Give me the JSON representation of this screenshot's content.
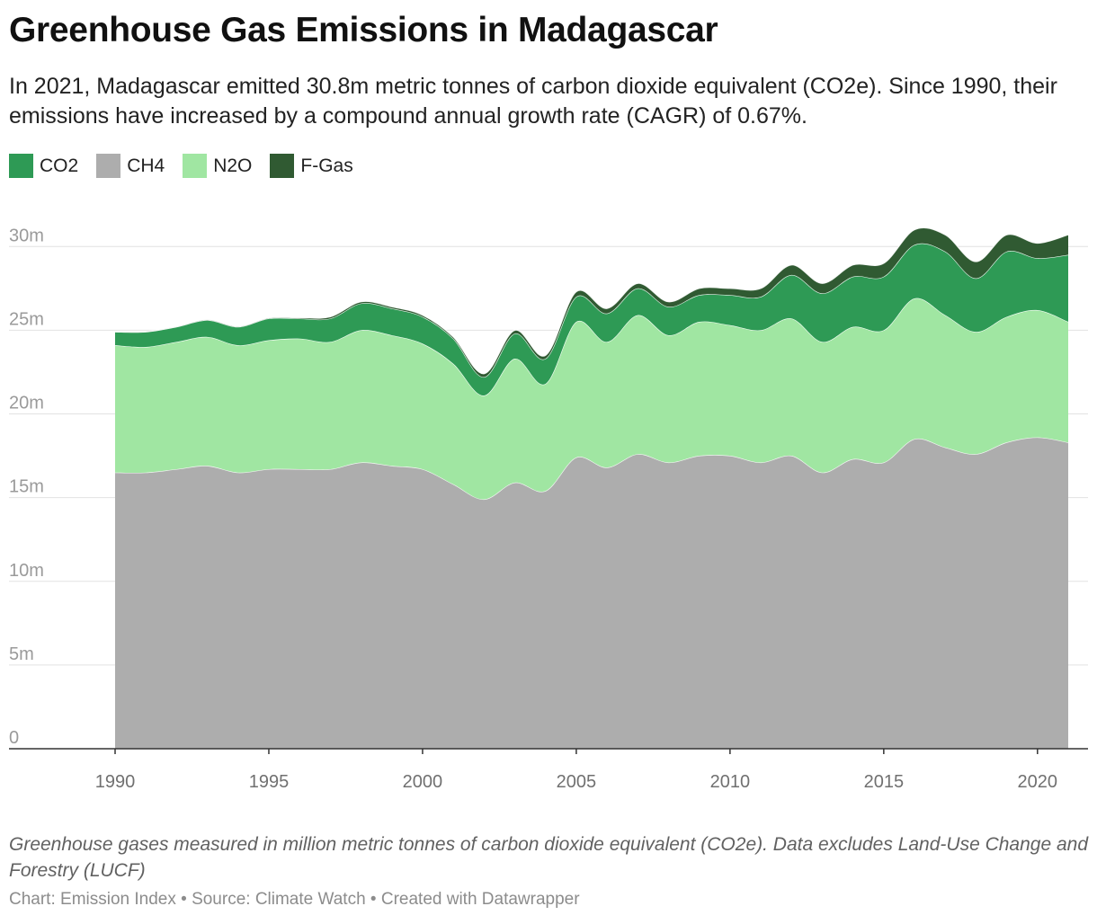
{
  "title": "Greenhouse Gas Emissions in Madagascar",
  "subtitle": "In 2021, Madagascar emitted 30.8m metric tonnes of carbon dioxide equivalent (CO2e). Since 1990, their emissions have increased by a compound annual growth rate (CAGR) of 0.67%.",
  "notes": "Greenhouse gases measured in million metric tonnes of carbon dioxide equivalent (CO2e). Data excludes Land-Use Change and Forestry (LUCF)",
  "source": "Chart: Emission Index • Source: Climate Watch • Created with Datawrapper",
  "legend": [
    {
      "label": "CO2",
      "color": "#2e9a55"
    },
    {
      "label": "CH4",
      "color": "#adadad"
    },
    {
      "label": "N2O",
      "color": "#a0e6a2"
    },
    {
      "label": "F-Gas",
      "color": "#305a32"
    }
  ],
  "chart_data": {
    "type": "area",
    "stacked": true,
    "x": [
      1990,
      1991,
      1992,
      1993,
      1994,
      1995,
      1996,
      1997,
      1998,
      1999,
      2000,
      2001,
      2002,
      2003,
      2004,
      2005,
      2006,
      2007,
      2008,
      2009,
      2010,
      2011,
      2012,
      2013,
      2014,
      2015,
      2016,
      2017,
      2018,
      2019,
      2020,
      2021
    ],
    "series": [
      {
        "name": "CH4",
        "color": "#adadad",
        "values": [
          16.5,
          16.5,
          16.7,
          16.9,
          16.5,
          16.7,
          16.7,
          16.7,
          17.1,
          16.9,
          16.7,
          15.8,
          14.9,
          15.9,
          15.4,
          17.4,
          16.8,
          17.6,
          17.1,
          17.5,
          17.5,
          17.1,
          17.5,
          16.5,
          17.3,
          17.1,
          18.5,
          18.0,
          17.6,
          18.3,
          18.6,
          18.3
        ]
      },
      {
        "name": "N2O",
        "color": "#a0e6a2",
        "values": [
          7.6,
          7.5,
          7.6,
          7.7,
          7.6,
          7.7,
          7.8,
          7.6,
          7.9,
          7.8,
          7.5,
          7.2,
          6.2,
          7.4,
          6.4,
          8.1,
          7.5,
          8.3,
          7.6,
          8.0,
          7.8,
          7.9,
          8.2,
          7.8,
          7.9,
          7.9,
          8.4,
          7.9,
          7.3,
          7.5,
          7.6,
          7.2
        ]
      },
      {
        "name": "CO2",
        "color": "#2e9a55",
        "values": [
          0.8,
          0.9,
          0.9,
          1.0,
          1.1,
          1.3,
          1.2,
          1.4,
          1.6,
          1.6,
          1.6,
          1.5,
          1.1,
          1.5,
          1.5,
          1.5,
          1.7,
          1.6,
          1.7,
          1.6,
          1.8,
          2.0,
          2.6,
          2.9,
          3.0,
          3.2,
          3.2,
          3.8,
          3.2,
          3.9,
          3.1,
          4.0
        ]
      },
      {
        "name": "F-Gas",
        "color": "#305a32",
        "values": [
          0.02,
          0.02,
          0.02,
          0.03,
          0.03,
          0.03,
          0.05,
          0.1,
          0.1,
          0.1,
          0.1,
          0.1,
          0.2,
          0.2,
          0.2,
          0.3,
          0.3,
          0.3,
          0.3,
          0.4,
          0.4,
          0.5,
          0.6,
          0.6,
          0.7,
          0.8,
          0.9,
          1.0,
          1.0,
          1.0,
          0.9,
          1.2
        ]
      }
    ],
    "ylim": [
      0,
      30
    ],
    "y_ticks": [
      0,
      5,
      10,
      15,
      20,
      25,
      30
    ],
    "y_tick_labels": [
      "0",
      "5m",
      "10m",
      "15m",
      "20m",
      "25m",
      "30m"
    ],
    "x_ticks": [
      1990,
      1995,
      2000,
      2005,
      2010,
      2015,
      2020
    ],
    "x_tick_labels": [
      "1990",
      "1995",
      "2000",
      "2005",
      "2010",
      "2015",
      "2020"
    ],
    "grid": true,
    "legend_position": "top-left"
  }
}
